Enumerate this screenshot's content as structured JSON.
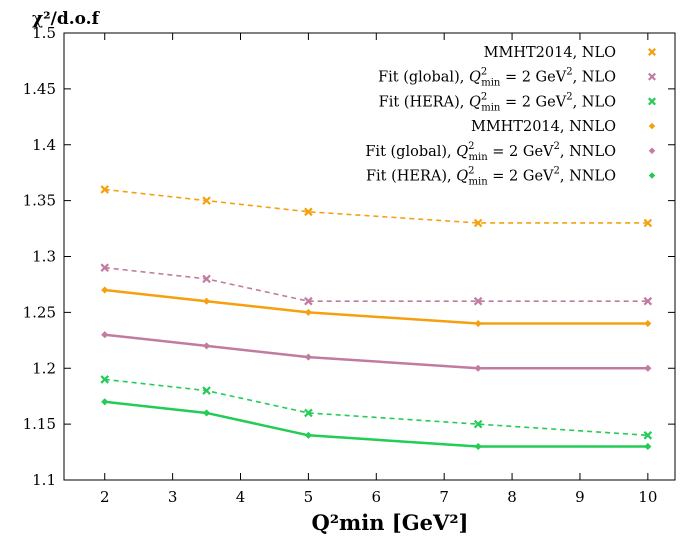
{
  "chart_data": {
    "type": "line",
    "ylabel": "χ²/d.o.f",
    "xlabel": "Q²min [GeV²]",
    "xlim": [
      1.4,
      10.4
    ],
    "ylim": [
      1.1,
      1.5
    ],
    "xticks": [
      2,
      3,
      4,
      5,
      6,
      7,
      8,
      9,
      10
    ],
    "yticks": [
      1.1,
      1.15,
      1.2,
      1.25,
      1.3,
      1.35,
      1.4,
      1.45,
      1.5
    ],
    "grid": false,
    "legend_position": "top-right",
    "x": [
      2,
      3.5,
      5,
      7.5,
      10
    ],
    "series": [
      {
        "label": "MMHT2014, NLO",
        "legend_parts": [
          "MMHT2014, NLO"
        ],
        "color": "#f5a00f",
        "dash": true,
        "marker": "x",
        "values": [
          1.36,
          1.35,
          1.34,
          1.33,
          1.33
        ]
      },
      {
        "label": "Fit (global), Q²min = 2 GeV², NLO",
        "legend_parts": [
          "Fit (global), ",
          "Q",
          "2",
          "min",
          " = 2 GeV",
          "2",
          ", NLO"
        ],
        "color": "#c27ba0",
        "dash": true,
        "marker": "x",
        "values": [
          1.29,
          1.28,
          1.26,
          1.26,
          1.26
        ]
      },
      {
        "label": "Fit (HERA), Q²min = 2 GeV², NLO",
        "legend_parts": [
          "Fit (HERA), ",
          "Q",
          "2",
          "min",
          " = 2 GeV",
          "2",
          ", NLO"
        ],
        "color": "#22cc55",
        "dash": true,
        "marker": "x",
        "values": [
          1.19,
          1.18,
          1.16,
          1.15,
          1.14
        ]
      },
      {
        "label": "MMHT2014, NNLO",
        "legend_parts": [
          "MMHT2014, NNLO"
        ],
        "color": "#f5a00f",
        "dash": false,
        "marker": "diamond",
        "values": [
          1.27,
          1.26,
          1.25,
          1.24,
          1.24
        ]
      },
      {
        "label": "Fit (global), Q²min = 2 GeV², NNLO",
        "legend_parts": [
          "Fit (global), ",
          "Q",
          "2",
          "min",
          " = 2 GeV",
          "2",
          ", NNLO"
        ],
        "color": "#c27ba0",
        "dash": false,
        "marker": "diamond",
        "values": [
          1.23,
          1.22,
          1.21,
          1.2,
          1.2
        ]
      },
      {
        "label": "Fit (HERA), Q²min = 2 GeV², NNLO",
        "legend_parts": [
          "Fit (HERA), ",
          "Q",
          "2",
          "min",
          " = 2 GeV",
          "2",
          ", NNLO"
        ],
        "color": "#22cc55",
        "dash": false,
        "marker": "diamond",
        "values": [
          1.17,
          1.16,
          1.14,
          1.13,
          1.13
        ]
      }
    ]
  }
}
